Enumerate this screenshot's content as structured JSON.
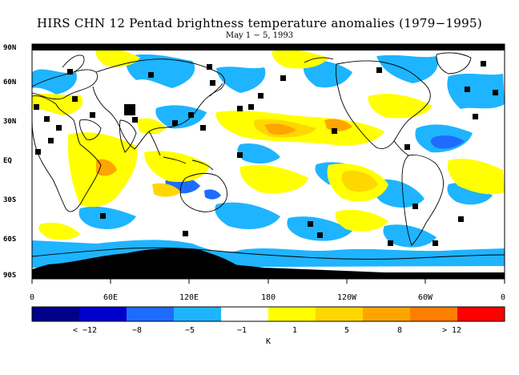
{
  "title": "HIRS CHN 12 Pentad brightness temperature anomalies (1979−1995)",
  "subtitle": "May 1 − 5, 1993",
  "lat_labels": [
    "90N",
    "60N",
    "30N",
    "EQ",
    "30S",
    "60S",
    "90S"
  ],
  "lon_labels": [
    "0",
    "60E",
    "120E",
    "180",
    "120W",
    "60W",
    "0"
  ],
  "colorbar": {
    "colors": [
      "#00008b",
      "#0000cd",
      "#1e6cff",
      "#1eb4ff",
      "#ffffff",
      "#ffff00",
      "#ffd700",
      "#ffa500",
      "#ff7f00",
      "#ff0000"
    ],
    "labels": [
      "< −12",
      "−8",
      "−5",
      "−1",
      "1",
      "5",
      "8",
      "> 12"
    ],
    "unit": "K"
  },
  "legend_colors": {
    "missing": "#000000",
    "cold_anomaly": "#1eb4ff",
    "warm_anomaly": "#ffff00",
    "strong_warm": "#ffa500",
    "strong_cold": "#1e6cff",
    "coast": "#000000"
  }
}
